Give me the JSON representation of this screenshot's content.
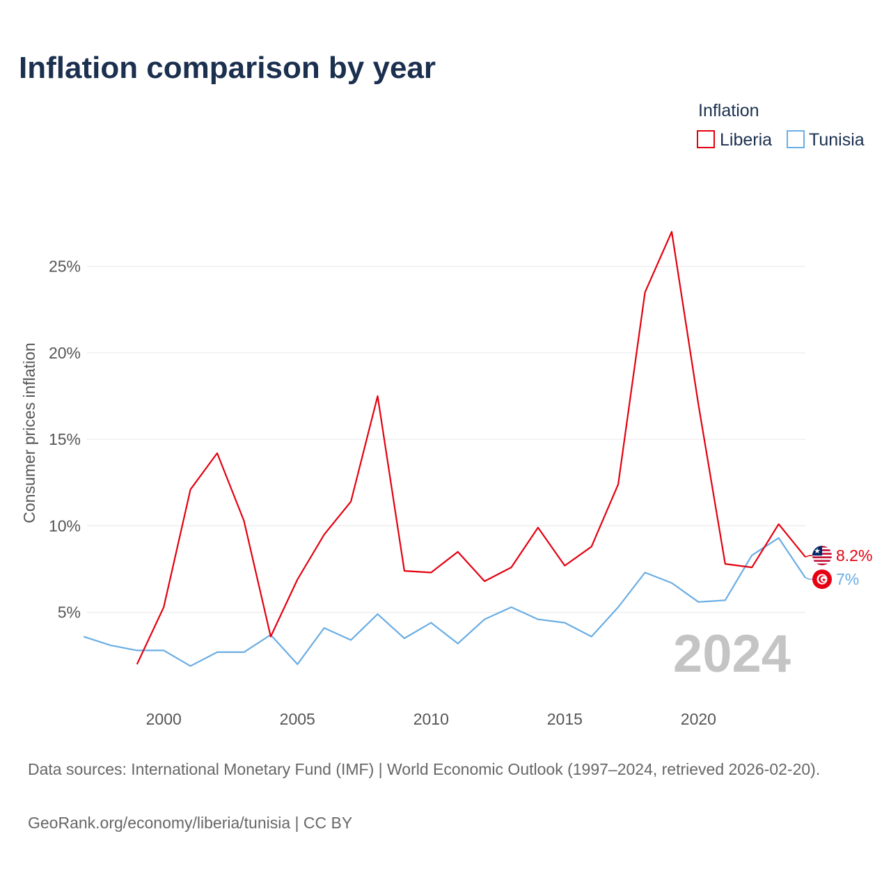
{
  "chart_data": {
    "type": "line",
    "title": "Inflation comparison by year",
    "legend_title": "Inflation",
    "legend_position": "top-right",
    "ylabel": "Consumer prices inflation",
    "xlabel": "",
    "xlim": [
      1997,
      2024
    ],
    "ylim": [
      0,
      28
    ],
    "x_ticks": [
      2000,
      2005,
      2010,
      2015,
      2020
    ],
    "y_ticks": [
      5,
      10,
      15,
      20,
      25
    ],
    "y_tick_labels": [
      "5%",
      "10%",
      "15%",
      "20%",
      "25%"
    ],
    "watermark_year": "2024",
    "series": [
      {
        "name": "Liberia",
        "color": "#e3000f",
        "flag_icon": "liberia-flag-icon",
        "end_label": "8.2%",
        "x": [
          1999,
          2000,
          2001,
          2002,
          2003,
          2004,
          2005,
          2006,
          2007,
          2008,
          2009,
          2010,
          2011,
          2012,
          2013,
          2014,
          2015,
          2016,
          2017,
          2018,
          2019,
          2020,
          2021,
          2022,
          2023,
          2024
        ],
        "values": [
          2.0,
          5.3,
          12.1,
          14.2,
          10.3,
          3.6,
          6.9,
          9.5,
          11.4,
          17.5,
          7.4,
          7.3,
          8.5,
          6.8,
          7.6,
          9.9,
          7.7,
          8.8,
          12.4,
          23.5,
          27.0,
          17.0,
          7.8,
          7.6,
          10.1,
          8.2
        ]
      },
      {
        "name": "Tunisia",
        "color": "#6aade4",
        "flag_icon": "tunisia-flag-icon",
        "end_label": "7%",
        "x": [
          1997,
          1998,
          1999,
          2000,
          2001,
          2002,
          2003,
          2004,
          2005,
          2006,
          2007,
          2008,
          2009,
          2010,
          2011,
          2012,
          2013,
          2014,
          2015,
          2016,
          2017,
          2018,
          2019,
          2020,
          2021,
          2022,
          2023,
          2024
        ],
        "values": [
          3.6,
          3.1,
          2.8,
          2.8,
          1.9,
          2.7,
          2.7,
          3.7,
          2.0,
          4.1,
          3.4,
          4.9,
          3.5,
          4.4,
          3.2,
          4.6,
          5.3,
          4.6,
          4.4,
          3.6,
          5.3,
          7.3,
          6.7,
          5.6,
          5.7,
          8.3,
          9.3,
          7.0
        ]
      }
    ]
  },
  "footer": {
    "sources": "Data sources: International Monetary Fund (IMF) | World Economic Outlook (1997–2024, retrieved 2026-02-20).",
    "credit": "GeoRank.org/economy/liberia/tunisia | CC BY"
  }
}
